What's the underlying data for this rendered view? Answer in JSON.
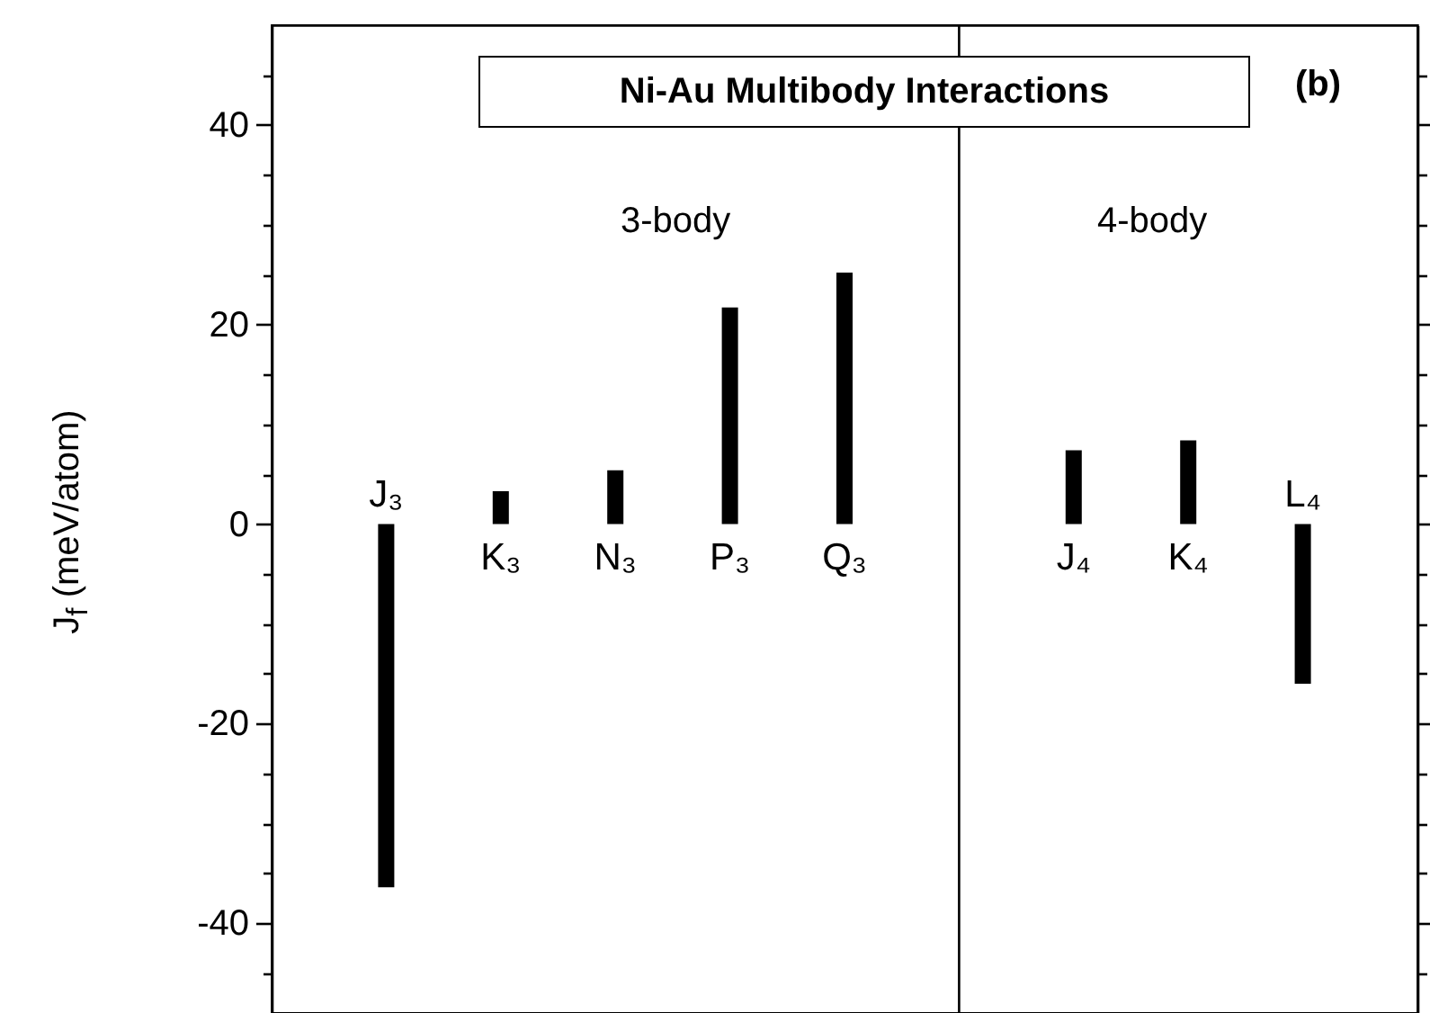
{
  "chart_data": {
    "type": "bar",
    "title": "Ni-Au Multibody Interactions",
    "ylabel": "J$_{f}$ (meV/atom)",
    "categories": [
      "J₃",
      "K₃",
      "N₃",
      "P₃",
      "Q₃",
      null,
      "J₄",
      "K₄",
      "L₄"
    ],
    "values": [
      -36.4,
      3.3,
      5.4,
      21.7,
      25.2,
      null,
      7.4,
      8.4,
      -16.0
    ],
    "color": "#000000",
    "ylim": [
      -49,
      50
    ],
    "yticks": [
      {
        "value": -45,
        "label": null
      },
      -40,
      {
        "value": -35,
        "label": null
      },
      {
        "value": -30,
        "label": null
      },
      {
        "value": -25,
        "label": null
      },
      -20,
      {
        "value": -15,
        "label": null
      },
      {
        "value": -10,
        "label": null
      },
      {
        "value": -5,
        "label": null
      },
      0,
      {
        "value": 5,
        "label": null
      },
      {
        "value": 10,
        "label": null
      },
      {
        "value": 15,
        "label": null
      },
      20,
      {
        "value": 25,
        "label": null
      },
      {
        "value": 30,
        "label": null
      },
      {
        "value": 35,
        "label": null
      },
      40,
      {
        "value": 45,
        "label": null
      }
    ],
    "annotations": [
      "3-body",
      "4-body",
      "(b)"
    ]
  }
}
